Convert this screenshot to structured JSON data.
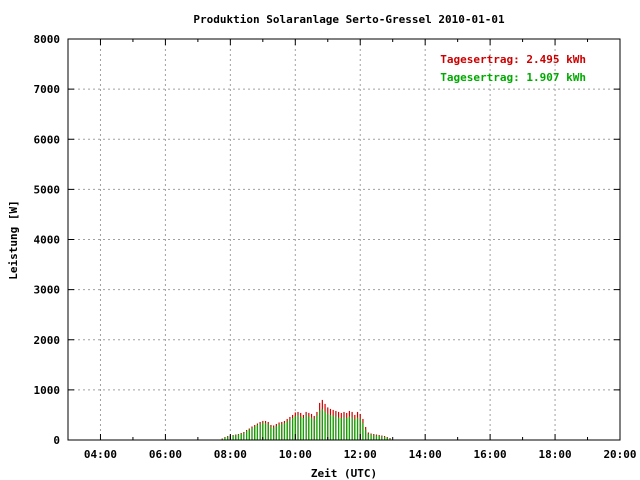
{
  "chart_data": {
    "type": "bar",
    "title": "Produktion Solaranlage Serto-Gressel 2010-01-01",
    "xlabel": "Zeit (UTC)",
    "ylabel": "Leistung [W]",
    "xlim": [
      "03:00",
      "20:00"
    ],
    "ylim": [
      0,
      8000
    ],
    "x_ticks": [
      "04:00",
      "06:00",
      "08:00",
      "10:00",
      "12:00",
      "14:00",
      "16:00",
      "18:00",
      "20:00"
    ],
    "y_ticks": [
      "0",
      "1000",
      "2000",
      "3000",
      "4000",
      "5000",
      "6000",
      "7000",
      "8000"
    ],
    "grid": true,
    "legend_position": "top-right",
    "bar_interval_minutes": 5,
    "x_start": "07:45",
    "series": [
      {
        "name": "Tagesertrag: 2.495 kWh",
        "color": "#cc0000",
        "values": [
          30,
          60,
          80,
          90,
          100,
          110,
          120,
          140,
          160,
          200,
          230,
          270,
          300,
          330,
          360,
          380,
          380,
          360,
          300,
          290,
          320,
          350,
          360,
          380,
          420,
          460,
          500,
          550,
          560,
          540,
          500,
          560,
          540,
          520,
          480,
          560,
          740,
          800,
          720,
          650,
          620,
          600,
          580,
          560,
          540,
          560,
          540,
          580,
          560,
          500,
          560,
          520,
          420,
          260,
          150,
          130,
          120,
          110,
          100,
          90,
          80,
          60,
          40
        ]
      },
      {
        "name": "Tagesertrag: 1.907 kWh",
        "color": "#00aa00",
        "values": [
          20,
          50,
          70,
          80,
          90,
          100,
          110,
          120,
          140,
          180,
          210,
          240,
          270,
          300,
          320,
          340,
          340,
          320,
          260,
          250,
          280,
          310,
          320,
          340,
          370,
          400,
          440,
          480,
          490,
          470,
          440,
          490,
          470,
          450,
          420,
          490,
          590,
          620,
          570,
          520,
          500,
          490,
          470,
          450,
          440,
          450,
          440,
          470,
          450,
          410,
          450,
          420,
          340,
          210,
          120,
          110,
          100,
          90,
          80,
          70,
          60,
          50,
          30
        ]
      }
    ]
  }
}
